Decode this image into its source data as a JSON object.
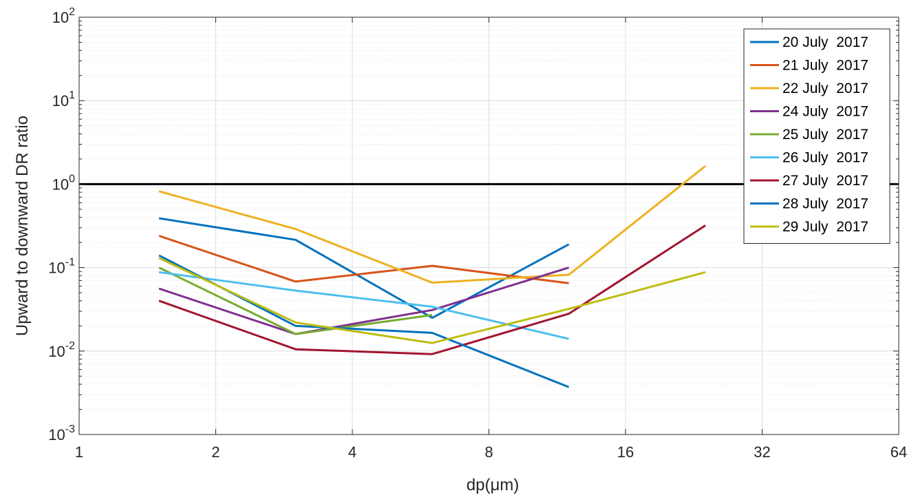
{
  "chart_data": {
    "type": "line",
    "title": "",
    "xlabel": "dp(μm)",
    "ylabel": "Upward to downward DR ratio",
    "x_scale": "log2",
    "y_scale": "log10",
    "xlim": [
      1,
      64
    ],
    "ylim": [
      0.001,
      100
    ],
    "x_ticks": [
      1,
      2,
      4,
      8,
      16,
      32,
      64
    ],
    "x_tick_labels": [
      "1",
      "2",
      "4",
      "8",
      "16",
      "32",
      "64"
    ],
    "y_ticks": [
      {
        "value": 0.001,
        "base": "10",
        "exp": "-3"
      },
      {
        "value": 0.01,
        "base": "10",
        "exp": "-2"
      },
      {
        "value": 0.1,
        "base": "10",
        "exp": "-1"
      },
      {
        "value": 1,
        "base": "10",
        "exp": "0"
      },
      {
        "value": 10,
        "base": "10",
        "exp": "1"
      },
      {
        "value": 100,
        "base": "10",
        "exp": "2"
      }
    ],
    "grid": true,
    "legend_position": "top-right",
    "reference_line": {
      "y": 1,
      "color": "#000000"
    },
    "series": [
      {
        "name": "20 July  2017",
        "color": "#0072BD",
        "x": [
          1.5,
          3,
          6,
          12
        ],
        "y": [
          0.39,
          0.215,
          0.025,
          0.19
        ]
      },
      {
        "name": "21 July  2017",
        "color": "#D95319",
        "x": [
          1.5,
          3,
          6,
          12
        ],
        "y": [
          0.24,
          0.068,
          0.105,
          0.065
        ]
      },
      {
        "name": "22 July  2017",
        "color": "#EDB120",
        "x": [
          1.5,
          3,
          6,
          12,
          24
        ],
        "y": [
          0.82,
          0.29,
          0.066,
          0.082,
          1.65
        ]
      },
      {
        "name": "24 July  2017",
        "color": "#7E2F8E",
        "x": [
          1.5,
          3,
          6,
          12
        ],
        "y": [
          0.056,
          0.016,
          0.031,
          0.1
        ]
      },
      {
        "name": "25 July  2017",
        "color": "#77AC30",
        "x": [
          1.5,
          3,
          6
        ],
        "y": [
          0.1,
          0.016,
          0.027
        ]
      },
      {
        "name": "26 July  2017",
        "color": "#4DBEEE",
        "x": [
          1.5,
          3,
          6,
          12
        ],
        "y": [
          0.088,
          0.053,
          0.034,
          0.014
        ]
      },
      {
        "name": "27 July  2017",
        "color": "#A2142F",
        "x": [
          1.5,
          3,
          6,
          12,
          24
        ],
        "y": [
          0.04,
          0.0105,
          0.0092,
          0.028,
          0.32
        ]
      },
      {
        "name": "28 July  2017",
        "color": "#0072BD",
        "x": [
          1.5,
          3,
          6,
          12
        ],
        "y": [
          0.14,
          0.02,
          0.0165,
          0.0037
        ]
      },
      {
        "name": "29 July  2017",
        "color": "#BDBD12",
        "x": [
          1.5,
          3,
          6,
          12,
          24
        ],
        "y": [
          0.13,
          0.022,
          0.0125,
          0.032,
          0.088
        ]
      }
    ]
  }
}
